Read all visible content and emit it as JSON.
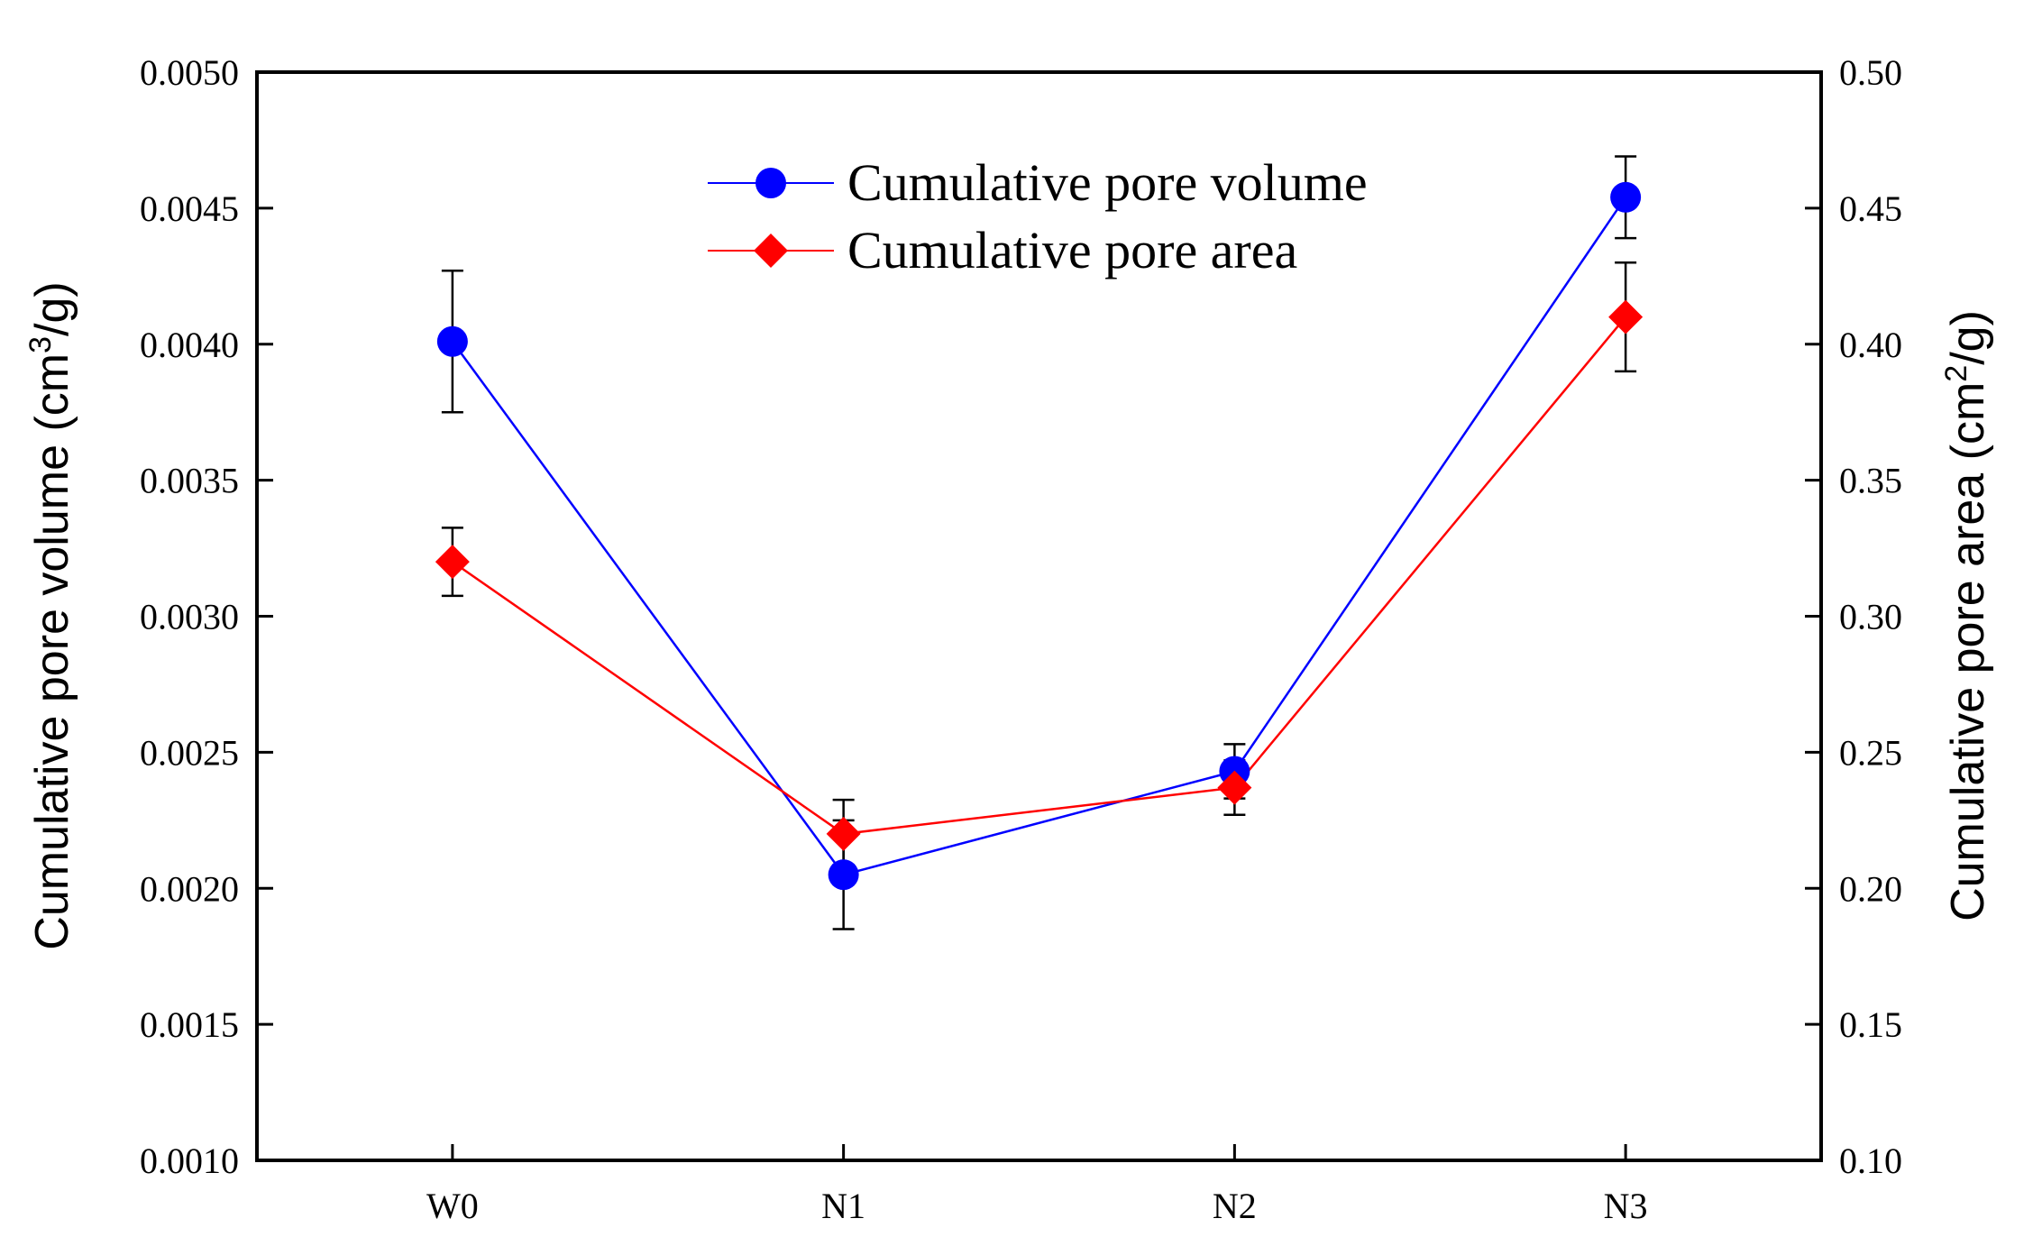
{
  "chart_data": {
    "type": "line",
    "categories": [
      "W0",
      "N1",
      "N2",
      "N3"
    ],
    "left_axis": {
      "label_prefix": "Cumulative pore volume (cm",
      "label_sup": "3",
      "label_suffix": "/g)",
      "range": [
        0.001,
        0.005
      ],
      "ticks": [
        "0.0010",
        "0.0015",
        "0.0020",
        "0.0025",
        "0.0030",
        "0.0035",
        "0.0040",
        "0.0045",
        "0.0050"
      ]
    },
    "right_axis": {
      "label_prefix": "Cumulative pore area (cm",
      "label_sup": "2",
      "label_suffix": "/g)",
      "range": [
        0.1,
        0.5
      ],
      "ticks": [
        "0.10",
        "0.15",
        "0.20",
        "0.25",
        "0.30",
        "0.35",
        "0.40",
        "0.45",
        "0.50"
      ]
    },
    "series": [
      {
        "name": "Cumulative pore volume",
        "axis": "left",
        "color": "#0000ff",
        "marker": "circle",
        "values": [
          0.00401,
          0.00205,
          0.00243,
          0.00454
        ],
        "errors": [
          0.00026,
          0.0002,
          0.0001,
          0.00015
        ]
      },
      {
        "name": "Cumulative pore area",
        "axis": "right",
        "color": "#ff0000",
        "marker": "diamond",
        "values": [
          0.32,
          0.22,
          0.237,
          0.41
        ],
        "errors": [
          0.0125,
          0.0125,
          0.01,
          0.02
        ]
      }
    ],
    "legend_position": "top-center"
  }
}
